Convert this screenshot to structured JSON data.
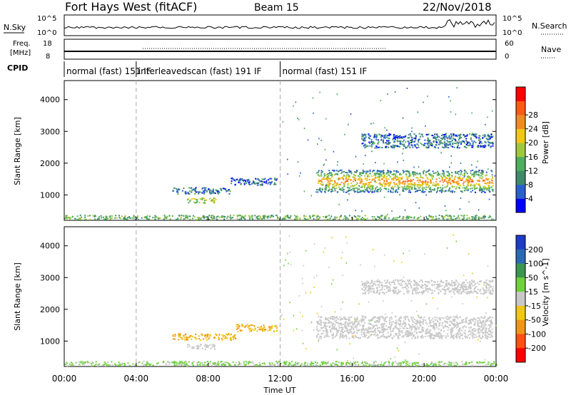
{
  "header": {
    "station": "Fort Hays West (fitACF)",
    "beam": "Beam 15",
    "date": "22/Nov/2018"
  },
  "top_panels": {
    "nsky_label": "N.Sky",
    "nsky_ticks": [
      "10^5",
      "10^0"
    ],
    "nsearch_label": "N.Search",
    "nsearch_ticks": [
      "10^5",
      "10^0"
    ],
    "freq_label_1": "Freq.",
    "freq_label_2": "[MHz]",
    "freq_ticks": [
      "18",
      "8"
    ],
    "nave_label": "Nave",
    "nave_ticks": [
      "60",
      "0"
    ],
    "cpid_label": "CPID",
    "cpid_segments": [
      {
        "label": "normal (fast) 151 IF",
        "start_hour": 0
      },
      {
        "label": "interleavedscan (fast) 191 IF",
        "start_hour": 4
      },
      {
        "label": "normal (fast) 151 IF",
        "start_hour": 12
      }
    ]
  },
  "chart_data": [
    {
      "type": "heatmap",
      "name": "power-panel",
      "ylabel": "Slant Range [km]",
      "xlim": [
        0,
        24
      ],
      "ylim": [
        200,
        4600
      ],
      "yticks": [
        1000,
        2000,
        3000,
        4000
      ],
      "colorbar_label": "Power [dB]",
      "colorbar_ticks": [
        "4",
        "8",
        "12",
        "16",
        "20",
        "24",
        "28"
      ],
      "colorbar_colors": [
        "#0000ff",
        "#2a5fcf",
        "#3f8a6a",
        "#4fae5f",
        "#a0c83c",
        "#f0c814",
        "#f08c1e",
        "#ff5a14",
        "#ff0000"
      ],
      "echo_regions": [
        {
          "desc": "ground scatter band",
          "x": [
            0,
            24
          ],
          "y": [
            240,
            380
          ],
          "value": 14
        },
        {
          "desc": "patch",
          "x": [
            6.0,
            9.2
          ],
          "y": [
            1050,
            1250
          ],
          "value": 8
        },
        {
          "desc": "patch",
          "x": [
            9.2,
            11.8
          ],
          "y": [
            1320,
            1550
          ],
          "value": 6
        },
        {
          "desc": "patch",
          "x": [
            6.8,
            8.4
          ],
          "y": [
            760,
            920
          ],
          "value": 18
        },
        {
          "desc": "main band",
          "x": [
            14.0,
            23.8
          ],
          "y": [
            1100,
            1800
          ],
          "value": 26
        },
        {
          "desc": "upper band",
          "x": [
            16.5,
            23.8
          ],
          "y": [
            2500,
            2950
          ],
          "value": 8
        }
      ]
    },
    {
      "type": "heatmap",
      "name": "velocity-panel",
      "ylabel": "Slant Range [km]",
      "xlabel": "Time UT",
      "xlim": [
        0,
        24
      ],
      "ylim": [
        200,
        4600
      ],
      "xticks": [
        "00:00",
        "04:00",
        "08:00",
        "12:00",
        "16:00",
        "20:00",
        "00:00"
      ],
      "yticks": [
        1000,
        2000,
        3000,
        4000
      ],
      "colorbar_label": "Velocity [m s^-1]",
      "colorbar_ticks": [
        "200",
        "100",
        "50",
        "15",
        "-15",
        "-50",
        "-100",
        "-200"
      ],
      "colorbar_colors": [
        "#1e3cc8",
        "#2a6ab4",
        "#3c9650",
        "#6ed23c",
        "#c8c8c8",
        "#f0c814",
        "#f09614",
        "#ff5014",
        "#ff0000"
      ],
      "echo_regions": [
        {
          "desc": "low band",
          "x": [
            0,
            24
          ],
          "y": [
            240,
            380
          ],
          "value": 20
        },
        {
          "desc": "patch",
          "x": [
            6.0,
            9.5
          ],
          "y": [
            1050,
            1250
          ],
          "value": -50
        },
        {
          "desc": "patch",
          "x": [
            9.5,
            11.8
          ],
          "y": [
            1320,
            1550
          ],
          "value": -50
        },
        {
          "desc": "patch",
          "x": [
            6.8,
            8.4
          ],
          "y": [
            760,
            920
          ],
          "value": 0
        },
        {
          "desc": "main band",
          "x": [
            14.0,
            23.8
          ],
          "y": [
            1100,
            1800
          ],
          "value": 0
        },
        {
          "desc": "upper band",
          "x": [
            16.5,
            23.8
          ],
          "y": [
            2500,
            2950
          ],
          "value": 0
        }
      ]
    }
  ]
}
